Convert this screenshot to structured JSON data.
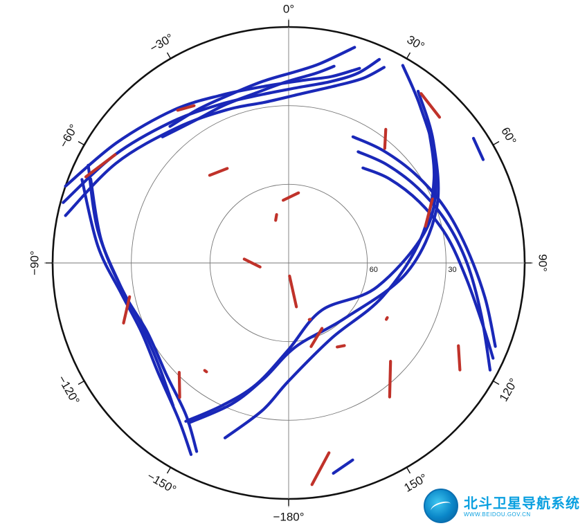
{
  "chart_data": {
    "type": "polar-skyplot",
    "title": "",
    "azimuth_labels": [
      "0°",
      "30°",
      "60°",
      "90°",
      "120°",
      "150°",
      "−180°",
      "−150°",
      "−120°",
      "−90°",
      "−60°",
      "−30°"
    ],
    "elevation_labels": [
      "60",
      "30"
    ],
    "elevation_rings": [
      60,
      30
    ],
    "colors": {
      "track_a": "#1a28b8",
      "track_b": "#c0322a",
      "frame": "#111111",
      "grid": "#777777"
    },
    "series": [
      {
        "color_key": "track_a",
        "tracks": [
          {
            "az": [
              -78,
              -60,
              -40,
              -22,
              -8,
              5,
              15,
              22,
              26
            ],
            "el": [
              3,
              14,
              23,
              27,
              28,
              25,
              20,
              14,
              7
            ]
          },
          {
            "az": [
              -75,
              -58,
              -40,
              -24,
              -10,
              3,
              13,
              20,
              24
            ],
            "el": [
              1,
              12,
              20,
              24,
              25,
              23,
              19,
              13,
              5
            ]
          },
          {
            "az": [
              -71,
              -55,
              -37,
              -22,
              -8,
              5,
              13,
              20
            ],
            "el": [
              0,
              10,
              17,
              21,
              22,
              20,
              17,
              11
            ]
          },
          {
            "az": [
              -45,
              -33,
              -22,
              -11,
              -1,
              8,
              13
            ],
            "el": [
              22,
              25,
              25,
              24,
              21,
              17,
              13
            ]
          },
          {
            "az": [
              -41,
              -30,
              -19,
              -8,
              2,
              9,
              17
            ],
            "el": [
              21,
              22,
              22,
              20,
              17,
              13,
              4
            ]
          },
          {
            "az": [
              -68,
              -85,
              -100,
              -115,
              -130,
              -145,
              -153
            ],
            "el": [
              5,
              17,
              25,
              28,
              25,
              17,
              8
            ]
          },
          {
            "az": [
              -67,
              -83,
              -100,
              -116,
              -132,
              -146,
              -154
            ],
            "el": [
              8,
              18,
              26,
              30,
              27,
              20,
              10
            ]
          },
          {
            "az": [
              -64,
              -80,
              -97,
              -113,
              -128,
              -141
            ],
            "el": [
              5,
              16,
              25,
              29,
              27,
              20
            ]
          },
          {
            "az": [
              27,
              40,
              55,
              70,
              85,
              100,
              112
            ],
            "el": [
              36,
              34,
              31,
              27,
              22,
              14,
              5
            ]
          },
          {
            "az": [
              32,
              45,
              60,
              75,
              90,
              105,
              118
            ],
            "el": [
              40,
              37,
              33,
              28,
              22,
              14,
              3
            ]
          },
          {
            "az": [
              38,
              50,
              65,
              80,
              95,
              108,
              115
            ],
            "el": [
              44,
              40,
              35,
              29,
              22,
              12,
              4
            ]
          },
          {
            "az": [
              30,
              40,
              55,
              75,
              105,
              145,
              180,
              -165,
              -155,
              -147
            ],
            "el": [
              3,
              12,
              22,
              35,
              55,
              68,
              57,
              42,
              30,
              18
            ]
          },
          {
            "az": [
              37,
              50,
              70,
              95,
              135,
              175,
              -168,
              -158,
              -148
            ],
            "el": [
              8,
              18,
              30,
              45,
              60,
              58,
              45,
              32,
              18
            ]
          },
          {
            "az": [
              44,
              60,
              80,
              110,
              150,
              180,
              -170,
              -160
            ],
            "el": [
              14,
              26,
              39,
              52,
              57,
              45,
              33,
              19
            ]
          },
          {
            "az": [
              56,
              62
            ],
            "el": [
              5,
              6
            ]
          },
          {
            "az": [
              162,
              168
            ],
            "el": [
              11,
              8
            ]
          }
        ]
      },
      {
        "color_key": "track_b",
        "tracks": [
          {
            "az": [
              -36,
              -31
            ],
            "el": [
              18,
              20
            ]
          },
          {
            "az": [
              -42,
              -33
            ],
            "el": [
              45,
              47
            ]
          },
          {
            "az": [
              -5,
              8
            ],
            "el": [
              66,
              63
            ]
          },
          {
            "az": [
              -17,
              -14
            ],
            "el": [
              73,
              71
            ]
          },
          {
            "az": [
              -67,
              -58
            ],
            "el": [
              6,
              12
            ]
          },
          {
            "az": [
              -98,
              -85
            ],
            "el": [
              79,
              73
            ]
          },
          {
            "az": [
              -110,
              -102
            ],
            "el": [
              23,
              28
            ]
          },
          {
            "az": [
              -141,
              -135
            ],
            "el": [
              24,
              31
            ]
          },
          {
            "az": [
              174,
              168
            ],
            "el": [
              5,
              16
            ]
          },
          {
            "az": [
              165,
              153
            ],
            "el": [
              57,
              62
            ]
          },
          {
            "az": [
              176,
              170
            ],
            "el": [
              85,
              73
            ]
          },
          {
            "az": [
              134,
              143
            ],
            "el": [
              36,
              26
            ]
          },
          {
            "az": [
              122,
              116
            ],
            "el": [
              13,
              18
            ]
          },
          {
            "az": [
              66,
              75
            ],
            "el": [
              30,
              36
            ]
          },
          {
            "az": [
              40,
              36
            ],
            "el": [
              33,
              27
            ]
          },
          {
            "az": [
              46,
              38
            ],
            "el": [
              10,
              8
            ]
          },
          {
            "az": [
              146,
              150
            ],
            "el": [
              52,
              53
            ]
          },
          {
            "az": [
              -143,
              -142
            ],
            "el": [
              38,
              38
            ]
          },
          {
            "az": [
              159,
              160
            ],
            "el": [
              67,
              67
            ]
          },
          {
            "az": [
              119,
              120
            ],
            "el": [
              47,
              47
            ]
          }
        ]
      }
    ]
  },
  "logo": {
    "name_cn": "北斗卫星导航系统",
    "url": "WWW.BEIDOU.GOV.CN"
  }
}
